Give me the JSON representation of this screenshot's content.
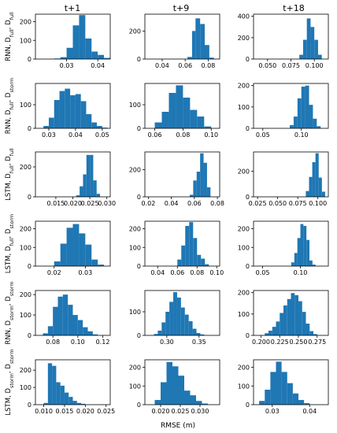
{
  "figure": {
    "column_titles": [
      "t+1",
      "t+9",
      "t+18"
    ],
    "row_labels": [
      {
        "base": "RNN, D",
        "s1": "full",
        "mid": ", D",
        "s2": "full"
      },
      {
        "base": "RNN, D",
        "s1": "full",
        "mid": ", D",
        "s2": "storm"
      },
      {
        "base": "LSTM, D",
        "s1": "full",
        "mid": ", D",
        "s2": "full"
      },
      {
        "base": "LSTM, D",
        "s1": "full",
        "mid": ", D",
        "s2": "storm"
      },
      {
        "base": "RNN, D",
        "s1": "storm",
        "mid": ", D",
        "s2": "storm"
      },
      {
        "base": "LSTM, D",
        "s1": "storm",
        "mid": ", D",
        "s2": "storm"
      }
    ],
    "xlabel": "RMSE (m)",
    "bar_color": "#1f77b4"
  },
  "chart_data": [
    {
      "type": "bar",
      "row": 0,
      "col": 0,
      "xlim": [
        0.02,
        0.044
      ],
      "ylim": [
        0,
        240
      ],
      "xticks": [
        "0.03",
        "0.04"
      ],
      "yticks": [
        "0",
        "100",
        "200"
      ],
      "bins": [
        [
          0.026,
          0.028,
          3
        ],
        [
          0.028,
          0.03,
          10
        ],
        [
          0.03,
          0.032,
          60
        ],
        [
          0.032,
          0.034,
          180
        ],
        [
          0.034,
          0.036,
          235
        ],
        [
          0.036,
          0.038,
          110
        ],
        [
          0.038,
          0.04,
          40
        ],
        [
          0.04,
          0.042,
          22
        ],
        [
          0.042,
          0.044,
          6
        ]
      ]
    },
    {
      "type": "bar",
      "row": 0,
      "col": 1,
      "xlim": [
        0.025,
        0.09
      ],
      "ylim": [
        0,
        320
      ],
      "xticks": [
        "0.04",
        "0.06",
        "0.08"
      ],
      "yticks": [
        "0",
        "200"
      ],
      "bins": [
        [
          0.062,
          0.066,
          15
        ],
        [
          0.066,
          0.069,
          200
        ],
        [
          0.069,
          0.073,
          290
        ],
        [
          0.073,
          0.077,
          250
        ],
        [
          0.077,
          0.081,
          100
        ],
        [
          0.081,
          0.085,
          10
        ]
      ]
    },
    {
      "type": "bar",
      "row": 0,
      "col": 2,
      "xlim": [
        0.035,
        0.115
      ],
      "ylim": [
        0,
        420
      ],
      "xticks": [
        "0.050",
        "0.075",
        "0.100"
      ],
      "yticks": [
        "0",
        "200",
        "400"
      ],
      "bins": [
        [
          0.084,
          0.088,
          40
        ],
        [
          0.088,
          0.092,
          180
        ],
        [
          0.092,
          0.096,
          380
        ],
        [
          0.096,
          0.1,
          300
        ],
        [
          0.1,
          0.104,
          180
        ],
        [
          0.104,
          0.108,
          40
        ]
      ]
    },
    {
      "type": "bar",
      "row": 1,
      "col": 0,
      "xlim": [
        0.025,
        0.053
      ],
      "ylim": [
        0,
        190
      ],
      "xticks": [
        "0.03",
        "0.04",
        "0.05"
      ],
      "yticks": [
        "0",
        "100"
      ],
      "bins": [
        [
          0.028,
          0.03,
          10
        ],
        [
          0.03,
          0.032,
          45
        ],
        [
          0.032,
          0.034,
          120
        ],
        [
          0.034,
          0.036,
          158
        ],
        [
          0.036,
          0.038,
          168
        ],
        [
          0.038,
          0.04,
          140
        ],
        [
          0.04,
          0.042,
          145
        ],
        [
          0.042,
          0.044,
          115
        ],
        [
          0.044,
          0.046,
          60
        ],
        [
          0.046,
          0.048,
          25
        ],
        [
          0.048,
          0.05,
          10
        ],
        [
          0.05,
          0.052,
          3
        ]
      ]
    },
    {
      "type": "bar",
      "row": 1,
      "col": 1,
      "xlim": [
        0.053,
        0.106
      ],
      "ylim": [
        0,
        190
      ],
      "xticks": [
        "0.06",
        "0.08",
        "0.10"
      ],
      "yticks": [
        "0",
        "100"
      ],
      "bins": [
        [
          0.06,
          0.065,
          25
        ],
        [
          0.065,
          0.07,
          70
        ],
        [
          0.07,
          0.075,
          150
        ],
        [
          0.075,
          0.08,
          182
        ],
        [
          0.08,
          0.085,
          130
        ],
        [
          0.085,
          0.09,
          78
        ],
        [
          0.09,
          0.095,
          50
        ],
        [
          0.095,
          0.1,
          8
        ]
      ]
    },
    {
      "type": "bar",
      "row": 1,
      "col": 2,
      "xlim": [
        0.038,
        0.135
      ],
      "ylim": [
        0,
        210
      ],
      "xticks": [
        "0.05",
        "0.10"
      ],
      "yticks": [
        "0",
        "100",
        "200"
      ],
      "bins": [
        [
          0.085,
          0.09,
          15
        ],
        [
          0.09,
          0.095,
          55
        ],
        [
          0.095,
          0.1,
          140
        ],
        [
          0.1,
          0.105,
          195
        ],
        [
          0.105,
          0.11,
          200
        ],
        [
          0.11,
          0.115,
          110
        ],
        [
          0.115,
          0.12,
          45
        ],
        [
          0.12,
          0.125,
          10
        ]
      ]
    },
    {
      "type": "bar",
      "row": 2,
      "col": 0,
      "xlim": [
        0.009,
        0.031
      ],
      "ylim": [
        0,
        300
      ],
      "xticks": [
        "0.015",
        "0.020",
        "0.025",
        "0.030"
      ],
      "yticks": [
        "0",
        "200"
      ],
      "bins": [
        [
          0.021,
          0.022,
          10
        ],
        [
          0.022,
          0.023,
          70
        ],
        [
          0.023,
          0.024,
          150
        ],
        [
          0.024,
          0.025,
          280
        ],
        [
          0.025,
          0.026,
          280
        ],
        [
          0.026,
          0.027,
          110
        ],
        [
          0.027,
          0.028,
          20
        ]
      ]
    },
    {
      "type": "bar",
      "row": 2,
      "col": 1,
      "xlim": [
        0.017,
        0.082
      ],
      "ylim": [
        0,
        330
      ],
      "xticks": [
        "0.02",
        "0.04",
        "0.06",
        "0.08"
      ],
      "yticks": [
        "0",
        "200"
      ],
      "bins": [
        [
          0.056,
          0.059,
          15
        ],
        [
          0.059,
          0.062,
          120
        ],
        [
          0.062,
          0.065,
          185
        ],
        [
          0.065,
          0.068,
          320
        ],
        [
          0.068,
          0.071,
          250
        ],
        [
          0.071,
          0.074,
          70
        ]
      ]
    },
    {
      "type": "bar",
      "row": 2,
      "col": 2,
      "xlim": [
        0.02,
        0.113
      ],
      "ylim": [
        0,
        350
      ],
      "xticks": [
        "0.025",
        "0.050",
        "0.075",
        "0.100"
      ],
      "yticks": [
        "0",
        "200"
      ],
      "bins": [
        [
          0.085,
          0.089,
          45
        ],
        [
          0.089,
          0.093,
          155
        ],
        [
          0.093,
          0.097,
          270
        ],
        [
          0.097,
          0.101,
          340
        ],
        [
          0.101,
          0.105,
          150
        ],
        [
          0.105,
          0.109,
          40
        ]
      ]
    },
    {
      "type": "bar",
      "row": 3,
      "col": 0,
      "xlim": [
        0.014,
        0.038
      ],
      "ylim": [
        0,
        240
      ],
      "xticks": [
        "0.02",
        "0.03"
      ],
      "yticks": [
        "0",
        "100",
        "200"
      ],
      "bins": [
        [
          0.02,
          0.022,
          25
        ],
        [
          0.022,
          0.024,
          120
        ],
        [
          0.024,
          0.026,
          205
        ],
        [
          0.026,
          0.028,
          225
        ],
        [
          0.028,
          0.03,
          175
        ],
        [
          0.03,
          0.032,
          115
        ],
        [
          0.032,
          0.034,
          35
        ],
        [
          0.034,
          0.036,
          8
        ]
      ]
    },
    {
      "type": "bar",
      "row": 3,
      "col": 1,
      "xlim": [
        0.027,
        0.103
      ],
      "ylim": [
        0,
        240
      ],
      "xticks": [
        "0.04",
        "0.06",
        "0.08",
        "0.10"
      ],
      "yticks": [
        "0",
        "100",
        "200"
      ],
      "bins": [
        [
          0.06,
          0.064,
          35
        ],
        [
          0.064,
          0.068,
          110
        ],
        [
          0.068,
          0.072,
          215
        ],
        [
          0.072,
          0.076,
          235
        ],
        [
          0.076,
          0.08,
          150
        ],
        [
          0.08,
          0.084,
          60
        ],
        [
          0.084,
          0.088,
          40
        ],
        [
          0.088,
          0.092,
          10
        ]
      ]
    },
    {
      "type": "bar",
      "row": 3,
      "col": 2,
      "xlim": [
        0.038,
        0.137
      ],
      "ylim": [
        0,
        240
      ],
      "xticks": [
        "0.05",
        "0.10"
      ],
      "yticks": [
        "0",
        "100",
        "200"
      ],
      "bins": [
        [
          0.088,
          0.092,
          20
        ],
        [
          0.092,
          0.096,
          70
        ],
        [
          0.096,
          0.1,
          150
        ],
        [
          0.1,
          0.104,
          225
        ],
        [
          0.104,
          0.108,
          215
        ],
        [
          0.108,
          0.112,
          140
        ],
        [
          0.112,
          0.116,
          30
        ],
        [
          0.116,
          0.12,
          8
        ]
      ]
    },
    {
      "type": "bar",
      "row": 4,
      "col": 0,
      "xlim": [
        0.066,
        0.126
      ],
      "ylim": [
        0,
        220
      ],
      "xticks": [
        "0.08",
        "0.10",
        "0.12"
      ],
      "yticks": [
        "0",
        "100",
        "200"
      ],
      "bins": [
        [
          0.072,
          0.076,
          10
        ],
        [
          0.076,
          0.08,
          45
        ],
        [
          0.08,
          0.084,
          140
        ],
        [
          0.084,
          0.088,
          190
        ],
        [
          0.088,
          0.092,
          200
        ],
        [
          0.092,
          0.096,
          150
        ],
        [
          0.096,
          0.1,
          100
        ],
        [
          0.1,
          0.104,
          75
        ],
        [
          0.104,
          0.108,
          40
        ],
        [
          0.108,
          0.112,
          20
        ],
        [
          0.112,
          0.116,
          5
        ]
      ]
    },
    {
      "type": "bar",
      "row": 4,
      "col": 1,
      "xlim": [
        0.266,
        0.382
      ],
      "ylim": [
        0,
        190
      ],
      "xticks": [
        "0.30",
        "0.35"
      ],
      "yticks": [
        "0",
        "100"
      ],
      "bins": [
        [
          0.28,
          0.286,
          6
        ],
        [
          0.286,
          0.292,
          20
        ],
        [
          0.292,
          0.298,
          55
        ],
        [
          0.298,
          0.304,
          100
        ],
        [
          0.304,
          0.31,
          142
        ],
        [
          0.31,
          0.316,
          183
        ],
        [
          0.316,
          0.322,
          160
        ],
        [
          0.322,
          0.328,
          118
        ],
        [
          0.328,
          0.334,
          88
        ],
        [
          0.334,
          0.34,
          60
        ],
        [
          0.34,
          0.346,
          28
        ],
        [
          0.346,
          0.352,
          10
        ],
        [
          0.352,
          0.358,
          4
        ]
      ]
    },
    {
      "type": "bar",
      "row": 4,
      "col": 2,
      "xlim": [
        0.19,
        0.29
      ],
      "ylim": [
        0,
        210
      ],
      "xticks": [
        "0.200",
        "0.225",
        "0.250",
        "0.275"
      ],
      "yticks": [
        "0",
        "100",
        "200"
      ],
      "bins": [
        [
          0.205,
          0.21,
          10
        ],
        [
          0.21,
          0.215,
          22
        ],
        [
          0.215,
          0.22,
          40
        ],
        [
          0.22,
          0.225,
          65
        ],
        [
          0.225,
          0.23,
          105
        ],
        [
          0.23,
          0.235,
          140
        ],
        [
          0.235,
          0.24,
          170
        ],
        [
          0.24,
          0.245,
          198
        ],
        [
          0.245,
          0.25,
          188
        ],
        [
          0.25,
          0.255,
          160
        ],
        [
          0.255,
          0.26,
          110
        ],
        [
          0.26,
          0.265,
          55
        ],
        [
          0.265,
          0.27,
          20
        ],
        [
          0.27,
          0.275,
          6
        ]
      ]
    },
    {
      "type": "bar",
      "row": 5,
      "col": 0,
      "xlim": [
        0.008,
        0.026
      ],
      "ylim": [
        0,
        260
      ],
      "xticks": [
        "0.010",
        "0.015",
        "0.020",
        "0.025"
      ],
      "yticks": [
        "0",
        "100",
        "200"
      ],
      "bins": [
        [
          0.01,
          0.011,
          10
        ],
        [
          0.011,
          0.012,
          240
        ],
        [
          0.012,
          0.013,
          225
        ],
        [
          0.013,
          0.014,
          130
        ],
        [
          0.014,
          0.015,
          110
        ],
        [
          0.015,
          0.016,
          70
        ],
        [
          0.016,
          0.017,
          45
        ],
        [
          0.017,
          0.018,
          22
        ],
        [
          0.018,
          0.019,
          10
        ],
        [
          0.019,
          0.02,
          5
        ]
      ]
    },
    {
      "type": "bar",
      "row": 5,
      "col": 1,
      "xlim": [
        0.016,
        0.035
      ],
      "ylim": [
        0,
        240
      ],
      "xticks": [
        "0.020",
        "0.025",
        "0.030"
      ],
      "yticks": [
        "0",
        "100",
        "200"
      ],
      "bins": [
        [
          0.0185,
          0.02,
          25
        ],
        [
          0.02,
          0.0215,
          120
        ],
        [
          0.0215,
          0.023,
          228
        ],
        [
          0.023,
          0.0245,
          205
        ],
        [
          0.0245,
          0.026,
          155
        ],
        [
          0.026,
          0.0275,
          75
        ],
        [
          0.0275,
          0.029,
          50
        ],
        [
          0.029,
          0.0305,
          20
        ],
        [
          0.0305,
          0.032,
          6
        ]
      ]
    },
    {
      "type": "bar",
      "row": 5,
      "col": 2,
      "xlim": [
        0.025,
        0.045
      ],
      "ylim": [
        0,
        240
      ],
      "xticks": [
        "0.03",
        "0.04"
      ],
      "yticks": [
        "0",
        "100",
        "200"
      ],
      "bins": [
        [
          0.0265,
          0.028,
          20
        ],
        [
          0.028,
          0.0295,
          80
        ],
        [
          0.0295,
          0.031,
          175
        ],
        [
          0.031,
          0.0325,
          230
        ],
        [
          0.0325,
          0.034,
          175
        ],
        [
          0.034,
          0.0355,
          115
        ],
        [
          0.0355,
          0.037,
          60
        ],
        [
          0.037,
          0.0385,
          25
        ],
        [
          0.0385,
          0.04,
          8
        ]
      ]
    }
  ]
}
